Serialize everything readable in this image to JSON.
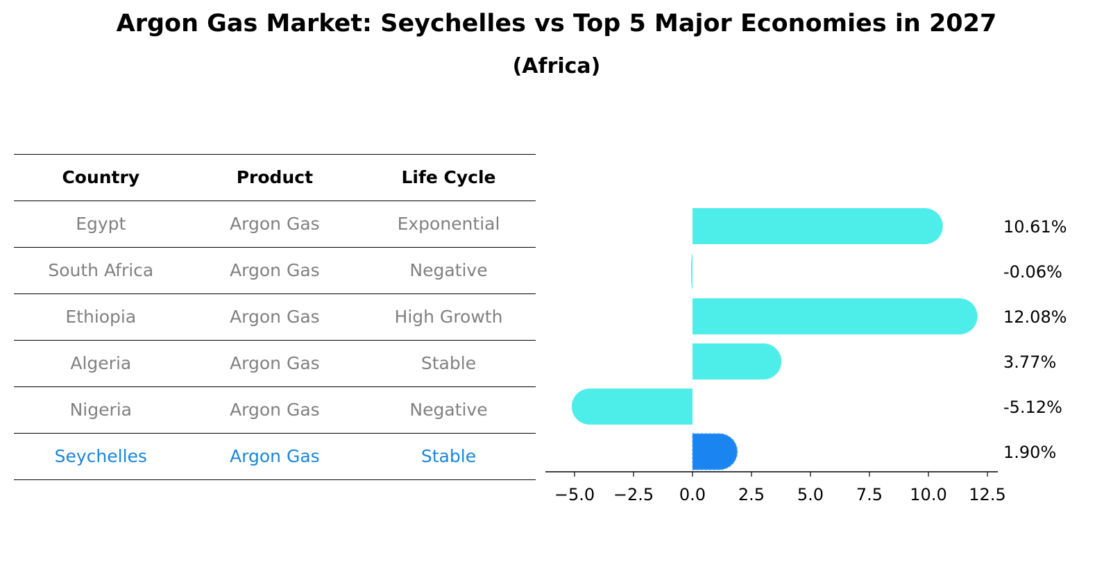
{
  "title": "Argon Gas Market: Seychelles vs Top 5 Major Economies in 2027",
  "subtitle": "(Africa)",
  "table": {
    "headers": [
      "Country",
      "Product",
      "Life Cycle"
    ],
    "rows": [
      {
        "country": "Egypt",
        "product": "Argon Gas",
        "life_cycle": "Exponential"
      },
      {
        "country": "South Africa",
        "product": "Argon Gas",
        "life_cycle": "Negative"
      },
      {
        "country": "Ethiopia",
        "product": "Argon Gas",
        "life_cycle": "High Growth"
      },
      {
        "country": "Algeria",
        "product": "Argon Gas",
        "life_cycle": "Stable"
      },
      {
        "country": "Nigeria",
        "product": "Argon Gas",
        "life_cycle": "Negative"
      },
      {
        "country": "Seychelles",
        "product": "Argon Gas",
        "life_cycle": "Stable"
      }
    ],
    "highlight_color": "#1a85d9",
    "text_color": "#808080"
  },
  "chart_data": {
    "type": "bar",
    "orientation": "horizontal",
    "categories": [
      "Egypt",
      "South Africa",
      "Ethiopia",
      "Algeria",
      "Nigeria",
      "Seychelles"
    ],
    "values": [
      10.61,
      -0.06,
      12.08,
      3.77,
      -5.12,
      1.9
    ],
    "value_labels": [
      "10.61%",
      "-0.06%",
      "12.08%",
      "3.77%",
      "-5.12%",
      "1.90%"
    ],
    "xlim": [
      -6,
      13
    ],
    "xticks": [
      -5.0,
      -2.5,
      0.0,
      2.5,
      5.0,
      7.5,
      10.0,
      12.5
    ],
    "xtick_labels": [
      "−5.0",
      "−2.5",
      "0.0",
      "2.5",
      "5.0",
      "7.5",
      "10.0",
      "12.5"
    ],
    "xlabel": "",
    "ylabel": "",
    "grid": false,
    "bar_color": "#4deeea",
    "highlight_color": "#1a85f0",
    "highlight_index": 5
  }
}
